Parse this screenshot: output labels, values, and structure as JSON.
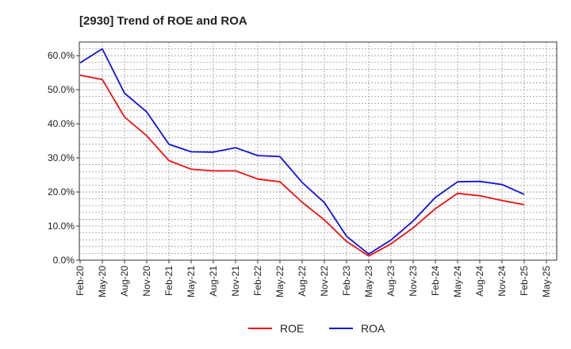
{
  "chart_data": {
    "type": "line",
    "title": "[2930]  Trend of ROE and ROA",
    "xlabel": "",
    "ylabel": "",
    "x": [
      "Feb-20",
      "May-20",
      "Aug-20",
      "Nov-20",
      "Feb-21",
      "May-21",
      "Aug-21",
      "Nov-21",
      "Feb-22",
      "May-22",
      "Aug-22",
      "Nov-22",
      "Feb-23",
      "May-23",
      "Aug-23",
      "Nov-23",
      "Feb-24",
      "May-24",
      "Aug-24",
      "Nov-24",
      "Feb-25",
      "May-25"
    ],
    "ylim": [
      0,
      64
    ],
    "yticks": [
      0,
      10,
      20,
      30,
      40,
      50,
      60
    ],
    "ytick_labels": [
      "0.0%",
      "10.0%",
      "20.0%",
      "30.0%",
      "40.0%",
      "50.0%",
      "60.0%"
    ],
    "grid": true,
    "legend_position": "bottom-center",
    "series": [
      {
        "name": "ROE",
        "color": "#ee1111",
        "values": [
          54.3,
          53.0,
          42.0,
          36.5,
          29.2,
          26.7,
          26.2,
          26.2,
          23.8,
          23.0,
          17.0,
          11.8,
          5.5,
          1.2,
          4.8,
          9.5,
          15.1,
          19.6,
          18.9,
          17.5,
          16.3,
          null
        ]
      },
      {
        "name": "ROA",
        "color": "#1111dd",
        "values": [
          57.9,
          62.0,
          49.0,
          43.5,
          34.0,
          31.8,
          31.7,
          33.0,
          30.7,
          30.4,
          22.8,
          16.9,
          7.0,
          1.8,
          5.9,
          11.5,
          18.4,
          23.0,
          23.1,
          22.2,
          19.3,
          null
        ]
      }
    ]
  }
}
